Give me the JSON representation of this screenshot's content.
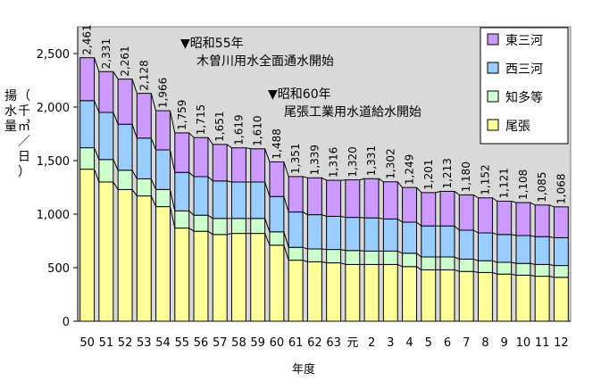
{
  "chart_data": {
    "type": "bar",
    "stacked": true,
    "categories": [
      "50",
      "51",
      "52",
      "53",
      "54",
      "55",
      "56",
      "57",
      "58",
      "59",
      "60",
      "61",
      "62",
      "63",
      "元",
      "2",
      "3",
      "4",
      "5",
      "6",
      "7",
      "8",
      "9",
      "10",
      "11",
      "12"
    ],
    "series": [
      {
        "name": "尾張",
        "color": "#ffff99",
        "values": [
          1420,
          1300,
          1230,
          1170,
          1070,
          870,
          840,
          810,
          820,
          820,
          710,
          570,
          555,
          545,
          530,
          530,
          530,
          510,
          480,
          480,
          465,
          455,
          440,
          430,
          420,
          410
        ]
      },
      {
        "name": "知多等",
        "color": "#ccffcc",
        "values": [
          200,
          210,
          180,
          160,
          160,
          160,
          150,
          150,
          140,
          140,
          125,
          120,
          120,
          125,
          130,
          125,
          125,
          125,
          120,
          120,
          115,
          110,
          110,
          110,
          110,
          110
        ]
      },
      {
        "name": "西三河",
        "color": "#99ccff",
        "values": [
          440,
          440,
          430,
          380,
          370,
          360,
          360,
          350,
          340,
          340,
          330,
          330,
          320,
          310,
          310,
          310,
          300,
          290,
          290,
          290,
          270,
          260,
          260,
          260,
          260,
          260
        ]
      },
      {
        "name": "東三河",
        "color": "#cc99ff",
        "values": [
          401,
          381,
          421,
          418,
          366,
          369,
          365,
          341,
          319,
          310,
          323,
          331,
          344,
          336,
          350,
          366,
          347,
          324,
          311,
          323,
          330,
          327,
          311,
          308,
          295,
          288
        ]
      }
    ],
    "totals": [
      "2,461",
      "2,331",
      "2,261",
      "2,128",
      "1,966",
      "1,759",
      "1,715",
      "1,651",
      "1,619",
      "1,610",
      "1,488",
      "1,351",
      "1,339",
      "1,316",
      "1,320",
      "1,331",
      "1,302",
      "1,249",
      "1,201",
      "1,213",
      "1,180",
      "1,152",
      "1,121",
      "1,108",
      "1,085",
      "1,068"
    ],
    "total_values": [
      2461,
      2331,
      2261,
      2128,
      1966,
      1759,
      1715,
      1651,
      1619,
      1610,
      1488,
      1351,
      1339,
      1316,
      1320,
      1331,
      1302,
      1249,
      1201,
      1213,
      1180,
      1152,
      1121,
      1108,
      1085,
      1068
    ],
    "ylim": [
      0,
      2750
    ],
    "yticks": [
      0,
      500,
      1000,
      1500,
      2000,
      2500
    ],
    "ytick_labels": [
      "0",
      "500",
      "1,000",
      "1,500",
      "2,000",
      "2,500"
    ],
    "ylabel_lines": [
      "揚水量",
      "（千㎥／日）"
    ],
    "xlabel": "年度",
    "legend_order": [
      "東三河",
      "西三河",
      "知多等",
      "尾張"
    ],
    "legend_position": "top-right",
    "annotations": [
      {
        "marker": "▼",
        "year": "昭和55年",
        "text": "木曽川用水全面通水開始",
        "at_category": "55"
      },
      {
        "marker": "▼",
        "year": "昭和60年",
        "text": "尾張工業用水道給水開始",
        "at_category": "60"
      }
    ],
    "plot_background": "#d9d9d9",
    "grid": false
  }
}
